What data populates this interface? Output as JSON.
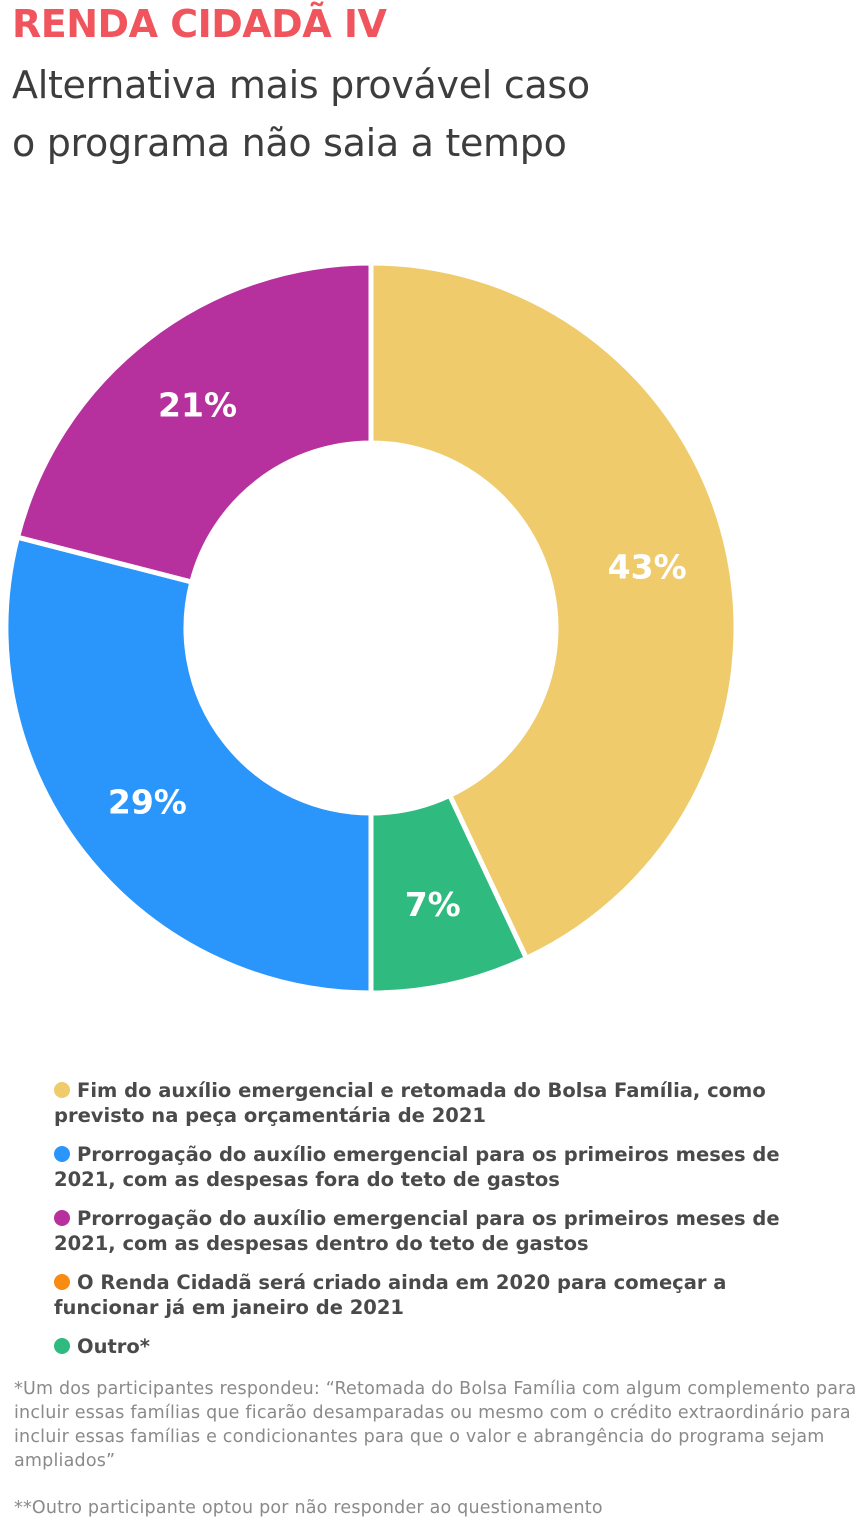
{
  "header": {
    "title": "RENDA CIDADÃ IV",
    "subtitle": "Alternativa mais provável caso o programa não saia a tempo"
  },
  "colors": {
    "title": "#f0545c",
    "yellow": "#efcb6c",
    "blue": "#2a96fc",
    "purple": "#b6319e",
    "orange": "#f98a12",
    "green": "#2fba7f"
  },
  "chart_data": {
    "type": "pie",
    "donut": true,
    "unit": "%",
    "slices": [
      {
        "label": "Fim do auxílio emergencial e retomada do Bolsa Família, como previsto na peça orçamentária de 2021",
        "value": 43,
        "display": "43%",
        "color": "#efcb6c"
      },
      {
        "label": "Outro*",
        "value": 7,
        "display": "7%",
        "color": "#2fba7f"
      },
      {
        "label": "Prorrogação do auxílio emergencial para os primeiros meses de 2021, com as despesas fora do teto de gastos",
        "value": 29,
        "display": "29%",
        "color": "#2a96fc"
      },
      {
        "label": "Prorrogação do auxílio emergencial para os primeiros meses de 2021, com as despesas dentro do teto de gastos",
        "value": 21,
        "display": "21%",
        "color": "#b6319e"
      }
    ],
    "legend": [
      {
        "label": "Fim do auxílio emergencial e retomada do Bolsa Família, como previsto na peça orçamentária de 2021",
        "color": "#efcb6c"
      },
      {
        "label": "Prorrogação do auxílio emergencial para os primeiros meses de 2021, com as despesas fora do teto de gastos",
        "color": "#2a96fc"
      },
      {
        "label": "Prorrogação do auxílio emergencial para os primeiros meses de 2021, com as despesas dentro do teto de gastos",
        "color": "#b6319e"
      },
      {
        "label": "O Renda Cidadã será criado ainda em 2020 para começar a funcionar já em janeiro de 2021",
        "color": "#f98a12"
      },
      {
        "label": "Outro*",
        "color": "#2fba7f"
      }
    ],
    "legend_position": "bottom"
  },
  "footnotes": {
    "note1": "*Um dos participantes respondeu: “Retomada do Bolsa Família com algum complemento para incluir essas famílias que ficarão desamparadas ou mesmo com o crédito extraordinário para incluir essas famílias e condicionantes para que o valor e abrangência do programa sejam ampliados”",
    "note2": "**Outro participante optou por não responder ao questionamento"
  }
}
